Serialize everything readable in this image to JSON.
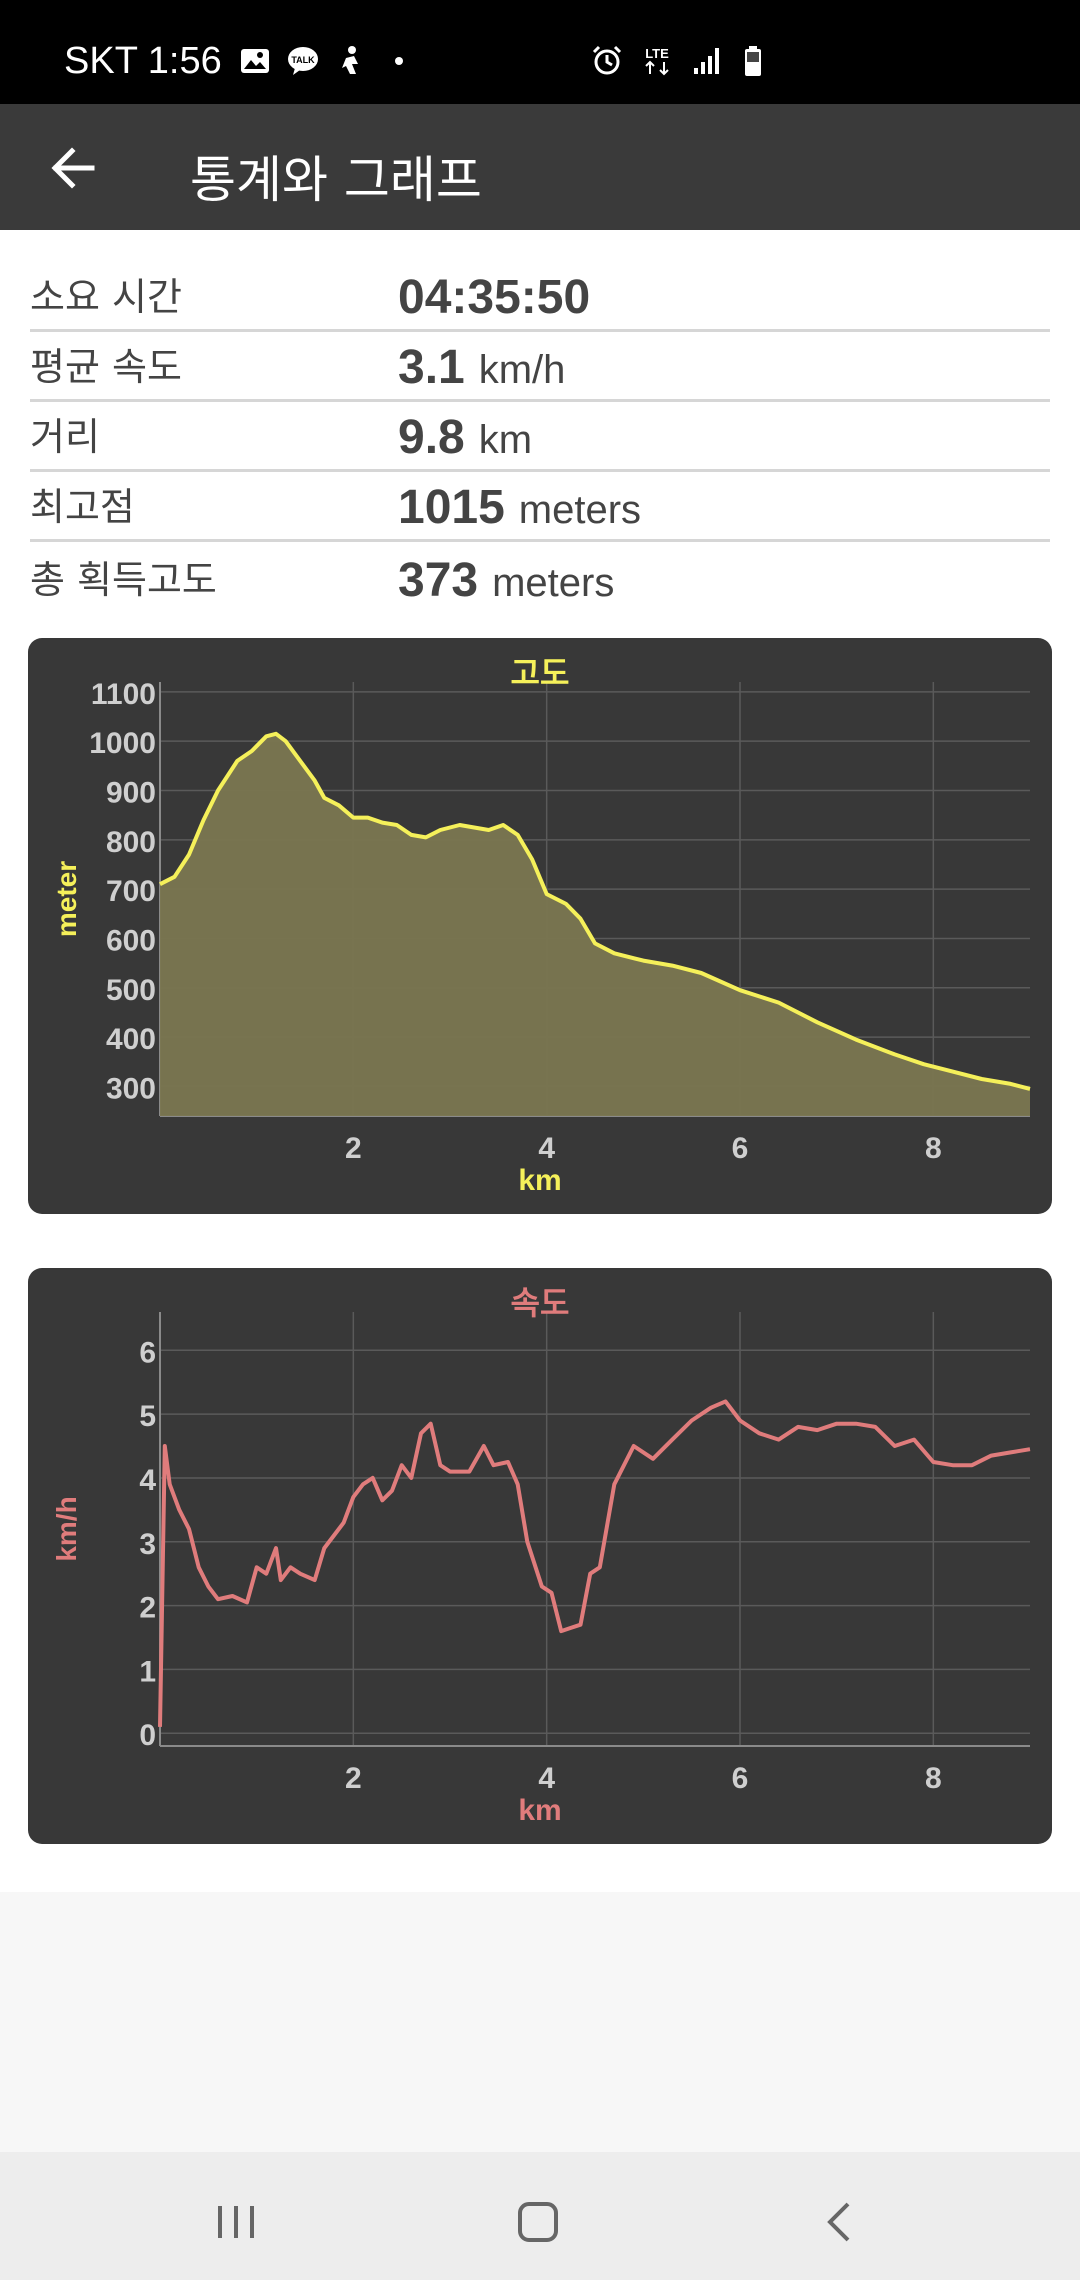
{
  "status": {
    "carrier_time": "SKT 1:56",
    "network": "LTE"
  },
  "app_bar": {
    "title": "통계와 그래프"
  },
  "stats": [
    {
      "label": "소요 시간",
      "value": "04:35:50",
      "unit": ""
    },
    {
      "label": "평균 속도",
      "value": "3.1",
      "unit": "km/h"
    },
    {
      "label": "거리",
      "value": "9.8",
      "unit": "km"
    },
    {
      "label": "최고점",
      "value": "1015",
      "unit": "meters"
    },
    {
      "label": "총 획득고도",
      "value": "373",
      "unit": "meters"
    }
  ],
  "chart_data": [
    {
      "type": "area",
      "title": "고도",
      "xlabel": "km",
      "ylabel": "meter",
      "color": "#f5f05a",
      "fill": "#7a7650",
      "xlim": [
        0,
        9
      ],
      "ylim": [
        240,
        1120
      ],
      "xticks": [
        2,
        4,
        6,
        8
      ],
      "yticks": [
        300,
        400,
        500,
        600,
        700,
        800,
        900,
        1000,
        1100
      ],
      "grid": true,
      "x": [
        0,
        0.15,
        0.3,
        0.45,
        0.6,
        0.8,
        0.95,
        1.1,
        1.2,
        1.3,
        1.45,
        1.6,
        1.7,
        1.85,
        2.0,
        2.15,
        2.3,
        2.45,
        2.6,
        2.75,
        2.9,
        3.1,
        3.25,
        3.4,
        3.55,
        3.7,
        3.85,
        4.0,
        4.2,
        4.35,
        4.5,
        4.7,
        5.0,
        5.3,
        5.6,
        6.0,
        6.4,
        6.8,
        7.2,
        7.6,
        7.9,
        8.2,
        8.5,
        8.8,
        9.0
      ],
      "y": [
        710,
        725,
        770,
        840,
        900,
        960,
        980,
        1010,
        1015,
        1000,
        960,
        920,
        885,
        870,
        845,
        845,
        835,
        830,
        810,
        805,
        820,
        830,
        825,
        820,
        830,
        810,
        760,
        690,
        670,
        640,
        590,
        570,
        555,
        545,
        530,
        495,
        470,
        430,
        395,
        365,
        345,
        330,
        315,
        305,
        295
      ]
    },
    {
      "type": "line",
      "title": "속도",
      "xlabel": "km",
      "ylabel": "km/h",
      "color": "#e07c7c",
      "xlim": [
        0,
        9
      ],
      "ylim": [
        -0.2,
        6.6
      ],
      "xticks": [
        2,
        4,
        6,
        8
      ],
      "yticks": [
        0,
        1,
        2,
        3,
        4,
        5,
        6
      ],
      "grid": true,
      "x": [
        0,
        0.05,
        0.1,
        0.2,
        0.3,
        0.4,
        0.5,
        0.6,
        0.75,
        0.9,
        1.0,
        1.1,
        1.2,
        1.25,
        1.35,
        1.45,
        1.6,
        1.7,
        1.8,
        1.9,
        2.0,
        2.1,
        2.2,
        2.3,
        2.4,
        2.5,
        2.6,
        2.7,
        2.8,
        2.9,
        3.0,
        3.2,
        3.35,
        3.45,
        3.6,
        3.7,
        3.8,
        3.95,
        4.05,
        4.15,
        4.25,
        4.35,
        4.45,
        4.55,
        4.7,
        4.9,
        5.1,
        5.3,
        5.5,
        5.7,
        5.85,
        6.0,
        6.2,
        6.4,
        6.6,
        6.8,
        7.0,
        7.2,
        7.4,
        7.6,
        7.8,
        8.0,
        8.2,
        8.4,
        8.6,
        8.8,
        9.0
      ],
      "y": [
        0.1,
        4.5,
        3.9,
        3.5,
        3.2,
        2.6,
        2.3,
        2.1,
        2.15,
        2.05,
        2.6,
        2.5,
        2.9,
        2.4,
        2.6,
        2.5,
        2.4,
        2.9,
        3.1,
        3.3,
        3.7,
        3.9,
        4.0,
        3.65,
        3.8,
        4.2,
        4.0,
        4.7,
        4.85,
        4.2,
        4.1,
        4.1,
        4.5,
        4.2,
        4.25,
        3.9,
        3.0,
        2.3,
        2.2,
        1.6,
        1.65,
        1.7,
        2.5,
        2.6,
        3.9,
        4.5,
        4.3,
        4.6,
        4.9,
        5.1,
        5.2,
        4.9,
        4.7,
        4.6,
        4.8,
        4.75,
        4.85,
        4.85,
        4.8,
        4.5,
        4.6,
        4.25,
        4.2,
        4.2,
        4.35,
        4.4,
        4.45
      ]
    }
  ]
}
